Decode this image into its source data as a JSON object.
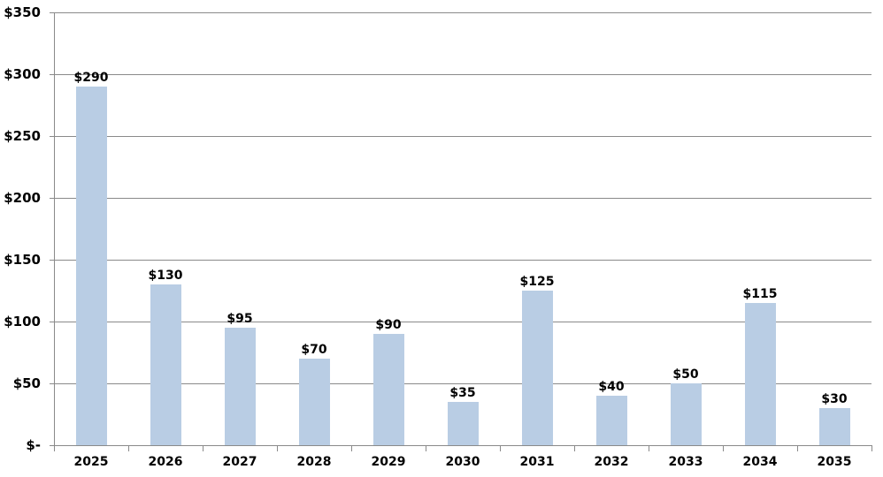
{
  "chart_data": {
    "type": "bar",
    "title": "",
    "xlabel": "",
    "ylabel": "",
    "categories": [
      "2025",
      "2026",
      "2027",
      "2028",
      "2029",
      "2030",
      "2031",
      "2032",
      "2033",
      "2034",
      "2035"
    ],
    "values": [
      290,
      130,
      95,
      70,
      90,
      35,
      125,
      40,
      50,
      115,
      30
    ],
    "data_labels": [
      "$290",
      "$130",
      "$95",
      "$70",
      "$90",
      "$35",
      "$125",
      "$40",
      "$50",
      "$115",
      "$30"
    ],
    "ylim": [
      0,
      350
    ],
    "y_tick_step": 50,
    "y_tick_labels": [
      "$-",
      "$50",
      "$100",
      "$150",
      "$200",
      "$250",
      "$300",
      "$350"
    ],
    "grid": "horizontal",
    "legend": "none",
    "colors": {
      "bar_fill": "#B9CDE4",
      "gridline": "#8A8A8A",
      "axis_line": "#8A8A8A",
      "label_text": "#000000",
      "background": "#FFFFFF"
    }
  }
}
